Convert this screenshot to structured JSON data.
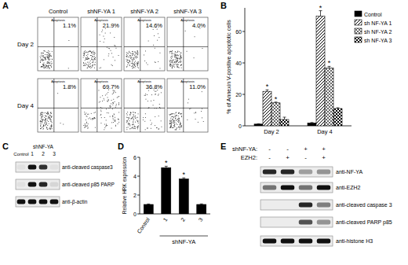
{
  "panel_labels": [
    "A",
    "B",
    "C",
    "D",
    "E"
  ],
  "flow": {
    "columns": [
      "Control",
      "shNF-YA 1",
      "shNF-YA 2",
      "shNF-YA 3"
    ],
    "rows": [
      "Day 2",
      "Day 4"
    ],
    "plot_title": "Apoptosis",
    "percentages": [
      [
        "1.1%",
        "21.9%",
        "14.6%",
        "4.0%"
      ],
      [
        "1.8%",
        "69.7%",
        "36.8%",
        "11.0%"
      ]
    ]
  },
  "chart_data": [
    {
      "type": "bar",
      "ylabel": "% of Annexin V-positive apoptotic cells",
      "categories": [
        "Day 2",
        "Day 4"
      ],
      "ylim": [
        0,
        75
      ],
      "yticks": [
        0,
        20,
        40,
        60
      ],
      "legend": "upper right",
      "series": [
        {
          "name": "Control",
          "color": "#000000",
          "values": [
            1.1,
            1.8
          ],
          "errors": [
            0.2,
            0.3
          ],
          "annotations": [
            null,
            null
          ]
        },
        {
          "name": "sh NF-YA 1",
          "color": "#ffffff",
          "values": [
            21.9,
            69.7
          ],
          "errors": [
            1.0,
            3.5
          ],
          "annotations": [
            "*",
            "*"
          ]
        },
        {
          "name": "sh NF-YA 2",
          "color": "#ffffff",
          "values": [
            14.6,
            36.8
          ],
          "errors": [
            0.5,
            1.0
          ],
          "annotations": [
            "*",
            "*"
          ]
        },
        {
          "name": "sh NF-YA 3",
          "color": "#ffffff",
          "values": [
            4.0,
            11.0
          ],
          "errors": [
            1.5,
            0.5
          ],
          "annotations": [
            null,
            null
          ]
        }
      ]
    },
    {
      "type": "bar",
      "ylabel": "Relative HRK expression",
      "categories": [
        "Control",
        "1",
        "2",
        "3"
      ],
      "group_label": "shNF-YA",
      "values": [
        1.0,
        4.9,
        3.7,
        1.0
      ],
      "errors": [
        0.05,
        0.15,
        0.12,
        0.06
      ],
      "annotations": [
        null,
        "*",
        "*",
        null
      ],
      "color": "#000000",
      "ylim": [
        0,
        6
      ],
      "yticks": [
        0,
        2,
        4,
        6
      ]
    }
  ],
  "blot_c": {
    "control_label": "Control",
    "group_label": "shNF-YA",
    "lanes": [
      null,
      "1",
      "2",
      "3"
    ],
    "rows": [
      {
        "label": "anti-cleaved caspase3",
        "intensity": [
          0.05,
          1.0,
          0.85,
          0.05
        ]
      },
      {
        "label": "anti-cleaved p85 PARP",
        "intensity": [
          0.05,
          1.0,
          0.9,
          0.1
        ]
      },
      {
        "label": "anti-β-actin",
        "intensity": [
          1.0,
          1.0,
          1.0,
          1.0
        ]
      }
    ]
  },
  "blot_e": {
    "conditions": [
      {
        "label": "shNF-YA:",
        "signs": [
          "-",
          "-",
          "+",
          "+"
        ]
      },
      {
        "label": "EZH2:",
        "signs": [
          "-",
          "+",
          "-",
          "+"
        ]
      }
    ],
    "rows": [
      {
        "label": "anti-NF-YA",
        "intensity": [
          0.9,
          0.9,
          0.35,
          0.4
        ]
      },
      {
        "label": "anti-EZH2",
        "intensity": [
          0.55,
          1.0,
          0.55,
          1.0
        ]
      },
      {
        "label": "anti-cleaved caspase 3",
        "intensity": [
          0.0,
          0.0,
          0.9,
          0.5
        ]
      },
      {
        "label": "anti-cleaved PARP p85",
        "intensity": [
          0.0,
          0.0,
          0.7,
          0.4
        ]
      },
      {
        "label": "anti-histone H3",
        "intensity": [
          1.0,
          1.0,
          1.0,
          1.0
        ]
      }
    ]
  }
}
